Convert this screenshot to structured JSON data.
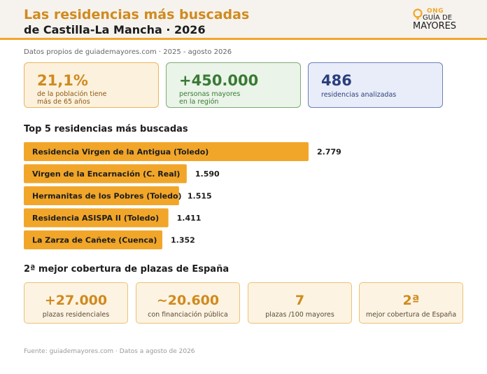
{
  "header": {
    "title_line1": "Las residencias más buscadas",
    "title_line2": "de Castilla-La Mancha · 2026",
    "logo_ong": "ONG",
    "logo_guia": "GUÍA DE",
    "logo_mayores": "MAYORES"
  },
  "subtitle": "Datos propios de guiademayores.com · 2025 - agosto 2026",
  "kpis": [
    {
      "value": "21,1%",
      "label_line1": "de la población tiene",
      "label_line2": "más de 65 años"
    },
    {
      "value": "+450.000",
      "label_line1": "personas mayores",
      "label_line2": "en la región"
    },
    {
      "value": "486",
      "label_line1": "residencias analizadas",
      "label_line2": ""
    }
  ],
  "section_top5": "Top 5 residencias más buscadas",
  "chart_data": {
    "type": "bar",
    "orientation": "horizontal",
    "title": "Top 5 residencias más buscadas",
    "categories": [
      "Residencia Virgen de la Antigua (Toledo)",
      "Virgen de la Encarnación (C. Real)",
      "Hermanitas de los Pobres (Toledo)",
      "Residencia ASISPA II (Toledo)",
      "La Zarza de Cañete (Cuenca)"
    ],
    "values": [
      2779,
      1590,
      1515,
      1411,
      1352
    ],
    "value_labels": [
      "2.779",
      "1.590",
      "1.515",
      "1.411",
      "1.352"
    ],
    "bar_color": "#f1a62a",
    "grid": false
  },
  "section_coverage": "2ª mejor cobertura de plazas de España",
  "stats": [
    {
      "value": "+27.000",
      "label": "plazas residenciales"
    },
    {
      "value": "~20.600",
      "label": "con financiación pública"
    },
    {
      "value": "7",
      "label": "plazas /100 mayores"
    },
    {
      "value": "2ª",
      "label": "mejor cobertura de España"
    }
  ],
  "footer": "Fuente: guiademayores.com · Datos a agosto de 2026",
  "colors": {
    "accent": "#f1a62a",
    "title_orange": "#d08a1e",
    "green": "#3a7a36",
    "navy": "#2c3f7b"
  }
}
